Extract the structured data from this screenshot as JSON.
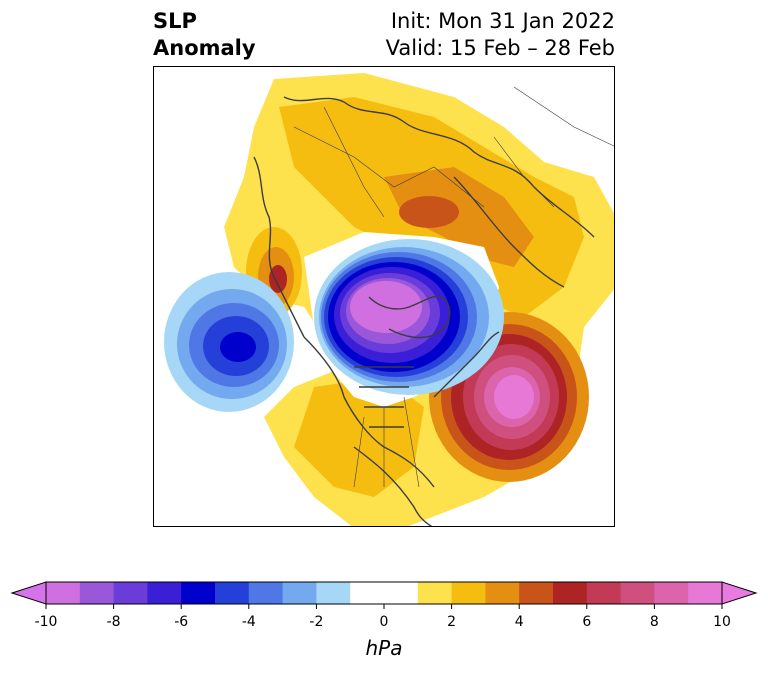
{
  "title": {
    "left_line1": "SLP",
    "left_line2": "Anomaly",
    "right_line1": "Init: Mon 31 Jan 2022",
    "right_line2": "Valid: 15 Feb – 28 Feb"
  },
  "colorbar": {
    "units": "hPa",
    "min": -10,
    "max": 10,
    "step": 1,
    "tick_labels": [
      "-10",
      "-8",
      "-6",
      "-4",
      "-2",
      "0",
      "2",
      "4",
      "6",
      "8",
      "10"
    ],
    "colors": [
      "#d06fe0",
      "#9b57d9",
      "#6a3ddb",
      "#3a1fd6",
      "#0000cc",
      "#2540d9",
      "#4f78e6",
      "#74a9ef",
      "#a6d7f7",
      "#ffffff",
      "#ffffff",
      "#fde24d",
      "#f5bd10",
      "#e58f12",
      "#c8541a",
      "#ae2424",
      "#c23a55",
      "#cf4f7e",
      "#db64ac",
      "#e778d6"
    ],
    "under_color": "#d673eb",
    "over_color": "#e97ae0"
  },
  "map": {
    "variable": "sea level pressure anomaly",
    "projection": "polar stereographic (North Hemisphere)"
  }
}
